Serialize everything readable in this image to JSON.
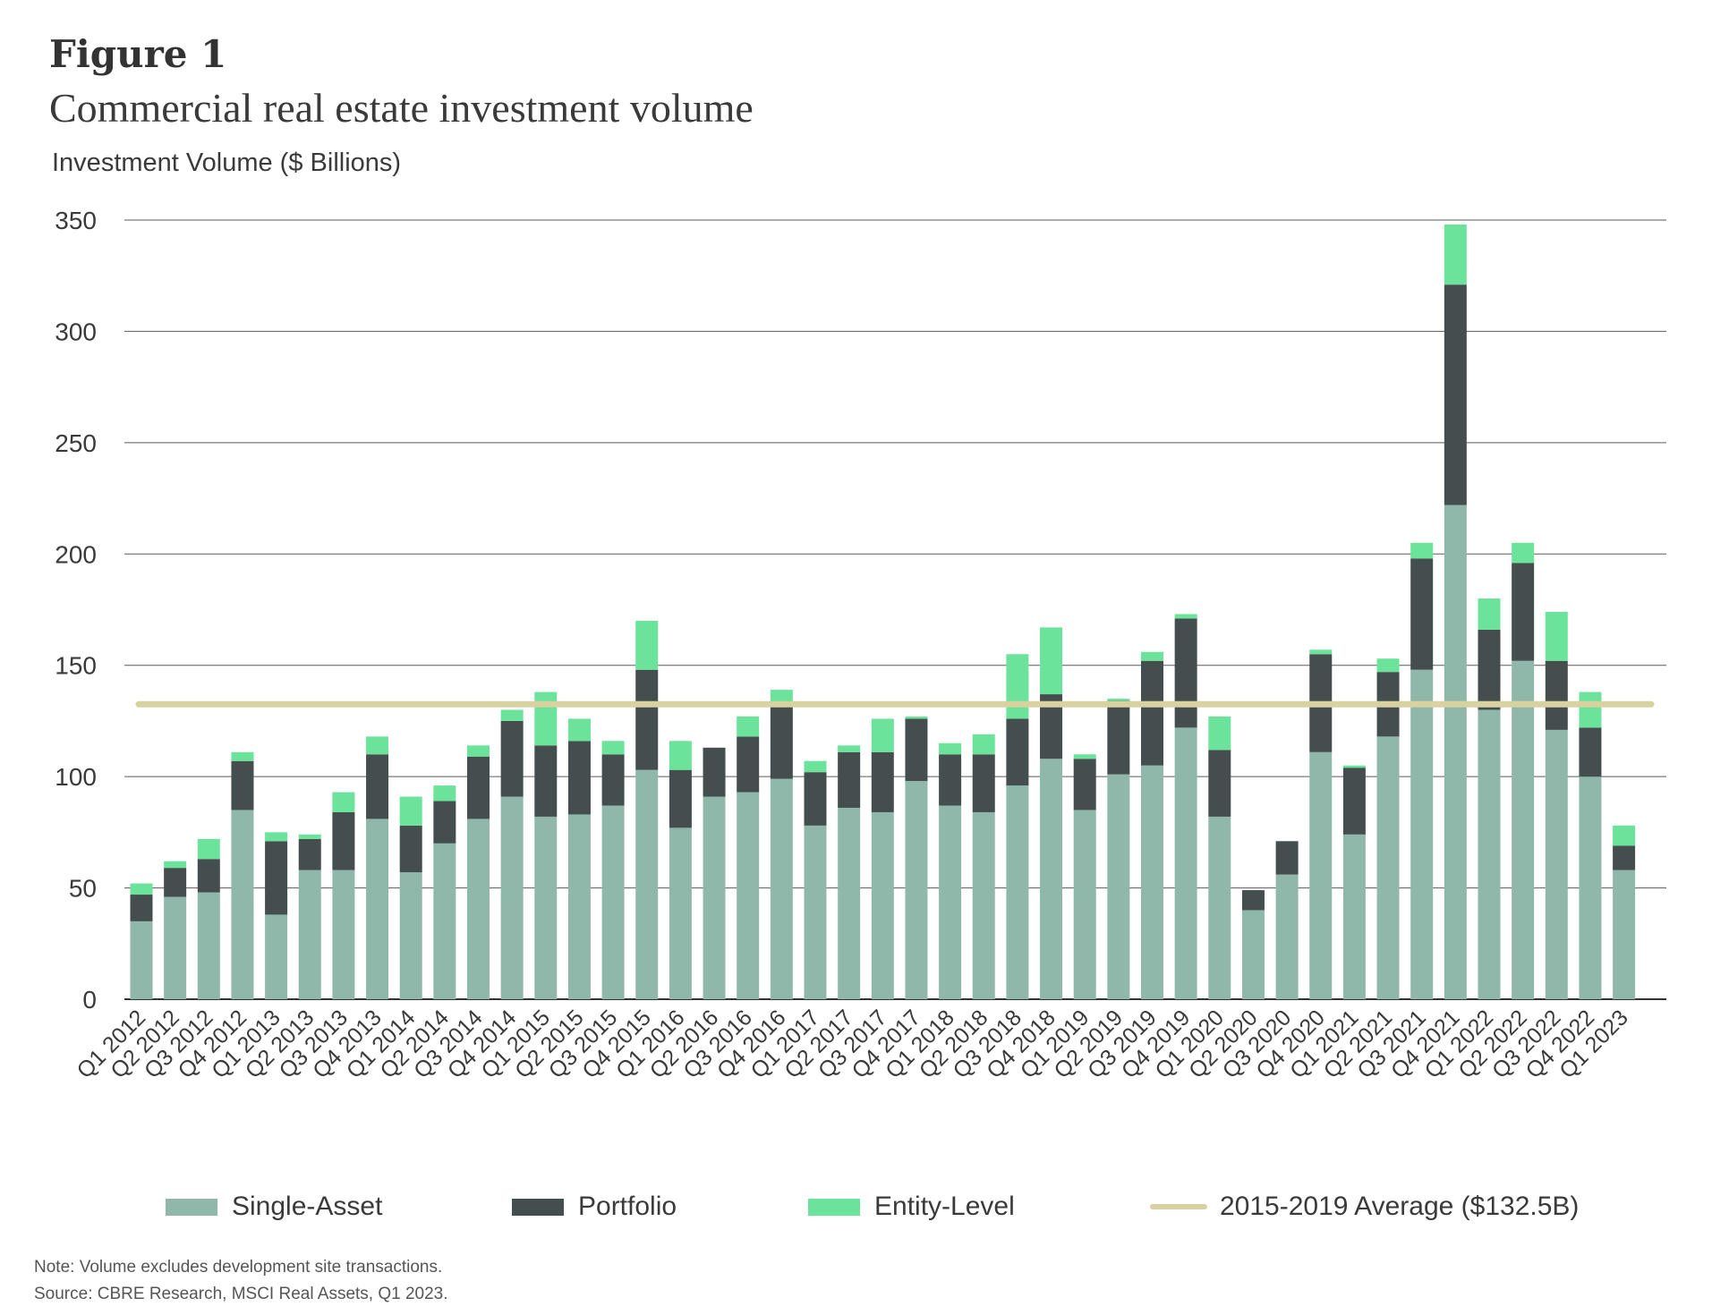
{
  "header": {
    "figure_label": "Figure 1",
    "title": "Commercial real estate investment volume"
  },
  "footer": {
    "note": "Note: Volume excludes development site transactions.",
    "source": "Source: CBRE Research, MSCI Real Assets, Q1 2023."
  },
  "colors": {
    "single_asset": "#8fb8aa",
    "portfolio": "#444e4e",
    "entity_level": "#6ce39a",
    "average_line": "#d8d2a0",
    "gridline": "#5a5a5a",
    "axis_text": "#3a3a3a"
  },
  "chart_data": {
    "type": "bar",
    "stacked": true,
    "ylabel": "Investment Volume ($ Billions)",
    "ylim": [
      0,
      350
    ],
    "yticks": [
      0,
      50,
      100,
      150,
      200,
      250,
      300,
      350
    ],
    "grid": true,
    "legend_position": "bottom",
    "categories": [
      "Q1 2012",
      "Q2 2012",
      "Q3 2012",
      "Q4 2012",
      "Q1 2013",
      "Q2 2013",
      "Q3 2013",
      "Q4 2013",
      "Q1 2014",
      "Q2 2014",
      "Q3 2014",
      "Q4 2014",
      "Q1 2015",
      "Q2 2015",
      "Q3 2015",
      "Q4 2015",
      "Q1 2016",
      "Q2 2016",
      "Q3 2016",
      "Q4 2016",
      "Q1 2017",
      "Q2 2017",
      "Q3 2017",
      "Q4 2017",
      "Q1 2018",
      "Q2 2018",
      "Q3 2018",
      "Q4 2018",
      "Q1 2019",
      "Q2 2019",
      "Q3 2019",
      "Q4 2019",
      "Q1 2020",
      "Q2 2020",
      "Q3 2020",
      "Q4 2020",
      "Q1 2021",
      "Q2 2021",
      "Q3 2021",
      "Q4 2021",
      "Q1 2022",
      "Q2 2022",
      "Q3 2022",
      "Q4 2022",
      "Q1 2023"
    ],
    "series": [
      {
        "name": "Single-Asset",
        "values": [
          35,
          46,
          48,
          85,
          38,
          58,
          58,
          81,
          57,
          70,
          81,
          91,
          82,
          83,
          87,
          103,
          77,
          91,
          93,
          99,
          78,
          86,
          84,
          98,
          87,
          84,
          96,
          108,
          85,
          101,
          105,
          122,
          82,
          40,
          56,
          111,
          74,
          118,
          148,
          222,
          130,
          152,
          121,
          100,
          58
        ]
      },
      {
        "name": "Portfolio",
        "values": [
          12,
          13,
          15,
          22,
          33,
          14,
          26,
          29,
          21,
          19,
          28,
          34,
          32,
          33,
          23,
          45,
          26,
          22,
          25,
          33,
          24,
          25,
          27,
          28,
          23,
          26,
          30,
          29,
          23,
          33,
          47,
          49,
          30,
          9,
          15,
          44,
          30,
          29,
          50,
          99,
          36,
          44,
          31,
          22,
          11
        ]
      },
      {
        "name": "Entity-Level",
        "values": [
          5,
          3,
          9,
          4,
          4,
          2,
          9,
          8,
          13,
          7,
          5,
          5,
          24,
          10,
          6,
          22,
          13,
          0,
          9,
          7,
          5,
          3,
          15,
          1,
          5,
          9,
          29,
          30,
          2,
          1,
          4,
          2,
          15,
          0,
          0,
          2,
          1,
          6,
          7,
          27,
          14,
          9,
          22,
          16,
          9
        ]
      }
    ],
    "average_line": {
      "name": "2015-2019 Average ($132.5B)",
      "value": 132.5
    }
  }
}
